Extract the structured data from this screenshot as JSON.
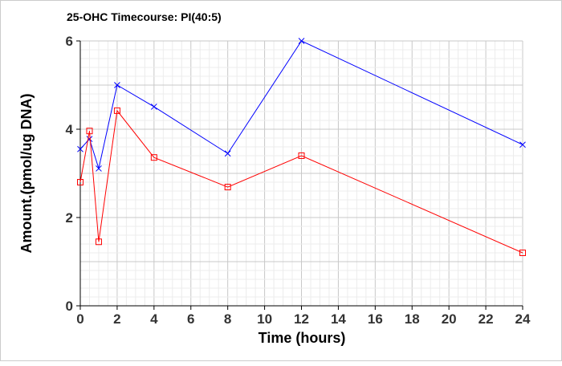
{
  "chart_data": {
    "type": "line",
    "title": "25-OHC Timecourse: PI(40:5)",
    "xlabel": "Time (hours)",
    "ylabel": "Amount.(pmol/ug DNA)",
    "xlim": [
      0,
      24
    ],
    "ylim": [
      0,
      6
    ],
    "xticks": [
      0,
      2,
      4,
      6,
      8,
      10,
      12,
      14,
      16,
      18,
      20,
      22,
      24
    ],
    "yticks": [
      0,
      2,
      4,
      6
    ],
    "grid": true,
    "series": [
      {
        "name": "series-blue",
        "color": "#0000ff",
        "marker": "x",
        "x": [
          0,
          0.5,
          1,
          2,
          4,
          8,
          12,
          24
        ],
        "y": [
          3.55,
          3.78,
          3.11,
          5.0,
          4.51,
          3.45,
          6.0,
          3.65
        ]
      },
      {
        "name": "series-red",
        "color": "#ff0000",
        "marker": "square",
        "x": [
          0,
          0.5,
          1,
          2,
          4,
          8,
          12,
          24
        ],
        "y": [
          2.8,
          3.96,
          1.45,
          4.42,
          3.36,
          2.69,
          3.4,
          1.2
        ]
      }
    ]
  }
}
